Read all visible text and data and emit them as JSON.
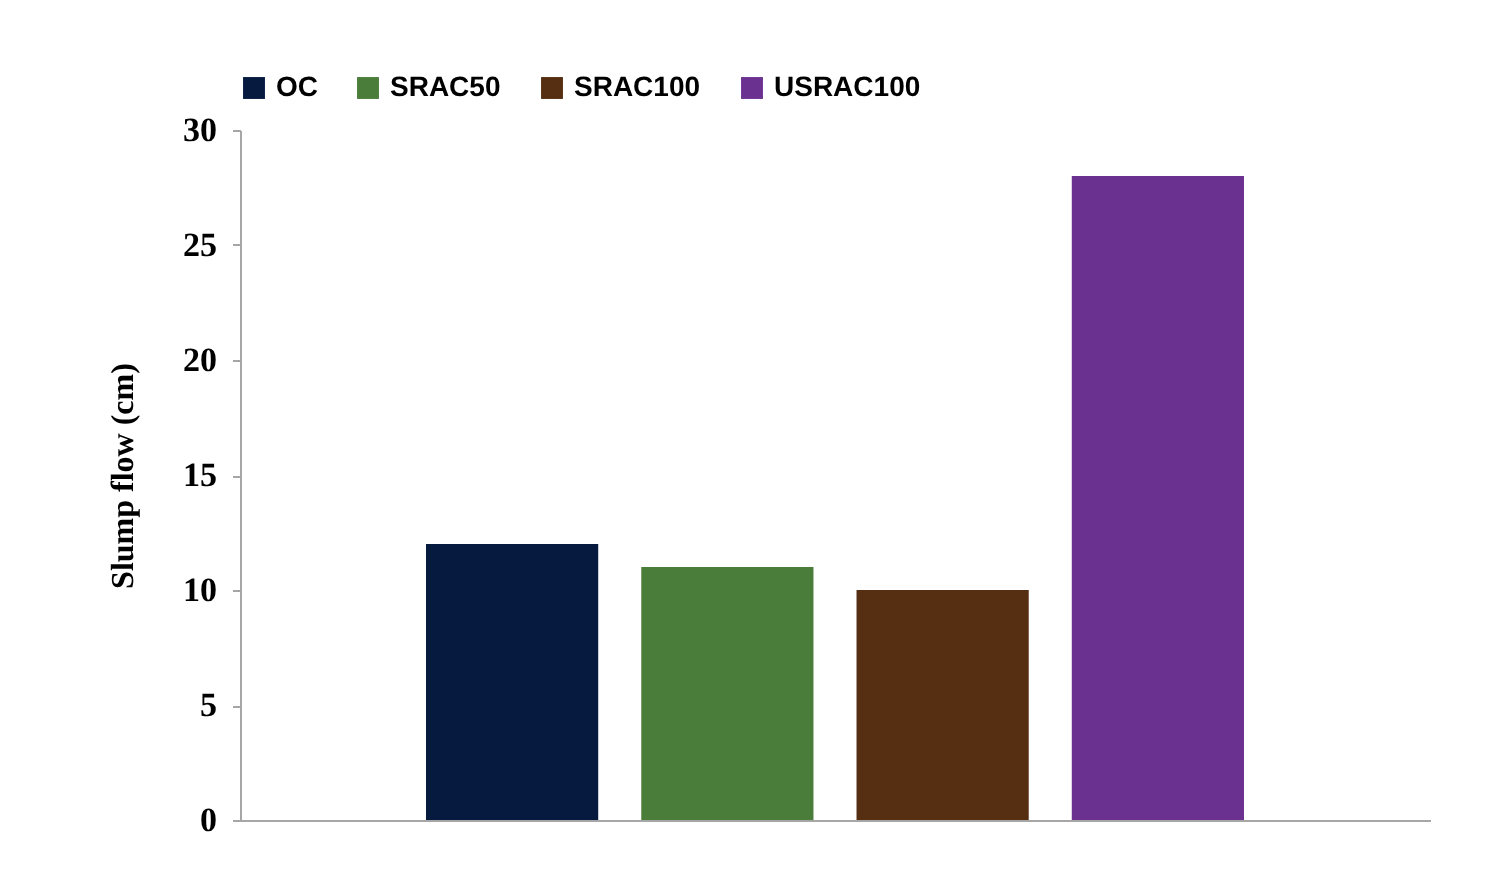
{
  "chart_data": {
    "type": "bar",
    "ylabel": "Slump flow (cm)",
    "categories": [
      null
    ],
    "series": [
      {
        "name": "OC",
        "color": "#061a40",
        "values": [
          12
        ]
      },
      {
        "name": "SRAC50",
        "color": "#4a7d3a",
        "values": [
          11
        ]
      },
      {
        "name": "SRAC100",
        "color": "#562f12",
        "values": [
          10
        ]
      },
      {
        "name": "USRAC100",
        "color": "#6a3191",
        "values": [
          28
        ]
      }
    ],
    "ylim": [
      0,
      30
    ],
    "yticks": [
      0,
      5,
      10,
      15,
      20,
      25,
      30
    ],
    "grid": false,
    "legend": "top",
    "tick_labels": "y"
  }
}
